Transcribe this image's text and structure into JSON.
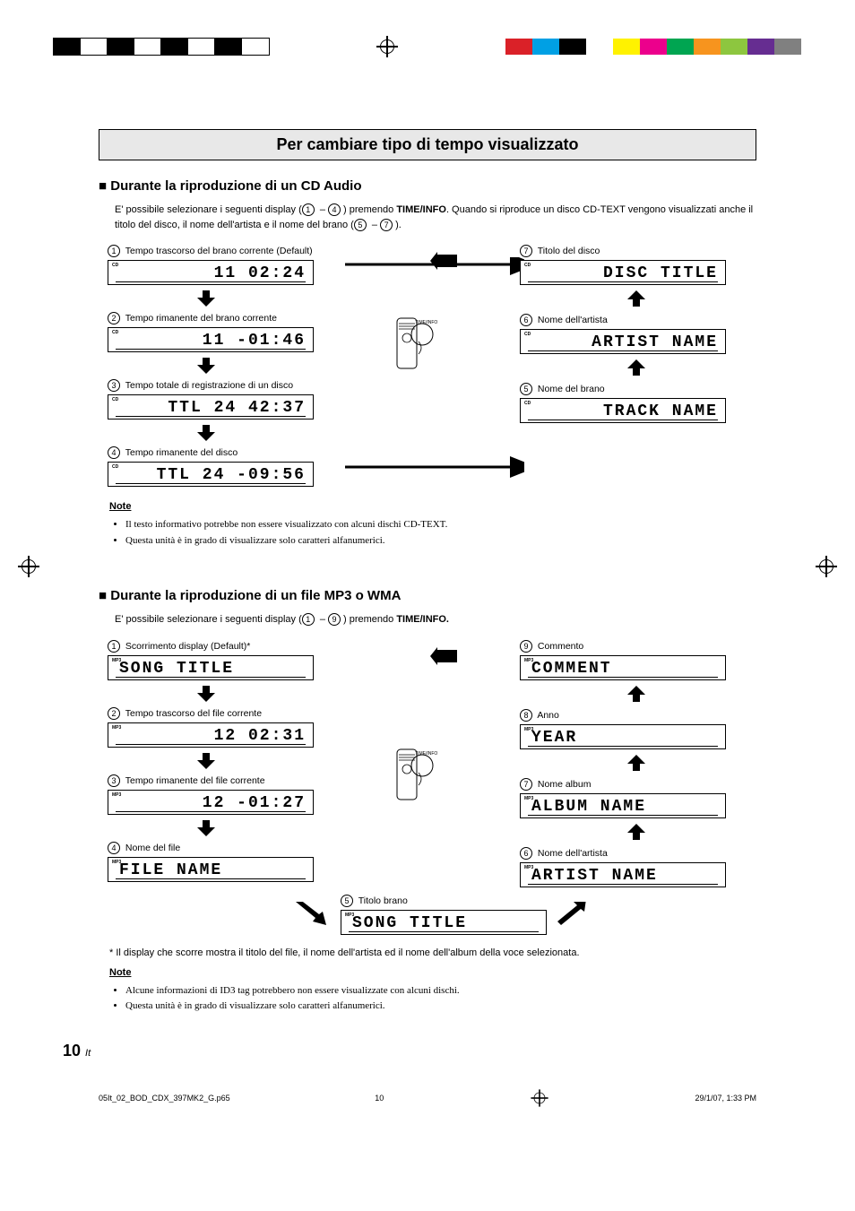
{
  "print_marks": {
    "left_blocks": [
      "#000000",
      "#ffffff",
      "#000000",
      "#ffffff",
      "#000000",
      "#ffffff",
      "#000000",
      "#ffffff"
    ],
    "right_blocks": [
      "#da2128",
      "#00a0e4",
      "#000000",
      "#ffffff",
      "#fff200",
      "#ec008c",
      "#00a551",
      "#f7941e",
      "#8dc63f",
      "#662d91",
      "#808080"
    ]
  },
  "section_title": "Per cambiare tipo di tempo visualizzato",
  "cd_section": {
    "heading": "Durante la riproduzione di un CD Audio",
    "intro_a": "E' possibile selezionare i seguenti display (",
    "intro_b": " – ",
    "intro_c": ") premendo ",
    "intro_bold": "TIME/INFO",
    "intro_d": ". Quando si riproduce un disco CD-TEXT vengono visualizzati anche il titolo del disco, il nome dell'artista e il nome del brano (",
    "intro_e": " – ",
    "intro_f": ").",
    "items_left": [
      {
        "num": "1",
        "label": "Tempo trascorso del brano corrente (Default)",
        "badge": "CD",
        "lcd": "11   02:24"
      },
      {
        "num": "2",
        "label": "Tempo rimanente del brano corrente",
        "badge": "CD",
        "lcd": "11  -01:46"
      },
      {
        "num": "3",
        "label": "Tempo totale di registrazione di un disco",
        "badge": "CD",
        "lcd": "TTL  24   42:37"
      },
      {
        "num": "4",
        "label": "Tempo rimanente del disco",
        "badge": "CD",
        "lcd": "TTL  24  -09:56"
      }
    ],
    "items_right": [
      {
        "num": "7",
        "label": "Titolo del disco",
        "badge": "CD",
        "lcd": "DISC TITLE"
      },
      {
        "num": "6",
        "label": "Nome dell'artista",
        "badge": "CD",
        "lcd": "ARTIST NAME"
      },
      {
        "num": "5",
        "label": "Nome del brano",
        "badge": "CD",
        "lcd": "TRACK NAME"
      }
    ],
    "remote_btn": "TIME/INFO",
    "note_heading": "Note",
    "notes": [
      "Il testo informativo potrebbe non essere visualizzato con alcuni dischi CD-TEXT.",
      "Questa unità è in grado di visualizzare solo caratteri alfanumerici."
    ]
  },
  "mp3_section": {
    "heading": "Durante la riproduzione di un file MP3 o WMA",
    "intro_a": "E' possibile selezionare i seguenti display (",
    "intro_b": " – ",
    "intro_c": ") premendo ",
    "intro_bold": "TIME/INFO.",
    "items_left": [
      {
        "num": "1",
        "label": "Scorrimento display (Default)*",
        "badge": "MP3",
        "lcd": "SONG TITLE",
        "align": "left"
      },
      {
        "num": "2",
        "label": "Tempo trascorso del file corrente",
        "badge": "MP3",
        "lcd": "12   02:31"
      },
      {
        "num": "3",
        "label": "Tempo rimanente del file corrente",
        "badge": "MP3",
        "lcd": "12  -01:27"
      },
      {
        "num": "4",
        "label": "Nome del file",
        "badge": "MP3",
        "lcd": "FILE NAME",
        "align": "left"
      }
    ],
    "items_right": [
      {
        "num": "9",
        "label": "Commento",
        "badge": "MP3",
        "lcd": "COMMENT",
        "align": "left"
      },
      {
        "num": "8",
        "label": "Anno",
        "badge": "MP3",
        "lcd": "YEAR",
        "align": "left"
      },
      {
        "num": "7",
        "label": "Nome album",
        "badge": "MP3",
        "lcd": "ALBUM NAME",
        "align": "left"
      },
      {
        "num": "6",
        "label": "Nome dell'artista",
        "badge": "MP3",
        "lcd": "ARTIST NAME",
        "align": "left"
      }
    ],
    "item_center": {
      "num": "5",
      "label": "Titolo brano",
      "badge": "MP3",
      "lcd": "SONG TITLE",
      "align": "left"
    },
    "remote_btn": "TIME/INFO",
    "footnote": "* Il display che scorre mostra il titolo del file, il nome dell'artista ed il nome dell'album della voce selezionata.",
    "note_heading": "Note",
    "notes": [
      "Alcune informazioni di ID3 tag potrebbero non essere visualizzate con alcuni dischi.",
      "Questa unità è in grado di visualizzare solo caratteri alfanumerici."
    ]
  },
  "page_number": "10",
  "page_lang": "It",
  "footer": {
    "file": "05It_02_BOD_CDX_397MK2_G.p65",
    "page": "10",
    "date": "29/1/07, 1:33 PM"
  },
  "colors": {
    "section_bg": "#e8e8e8",
    "border": "#000000",
    "text": "#000000"
  }
}
